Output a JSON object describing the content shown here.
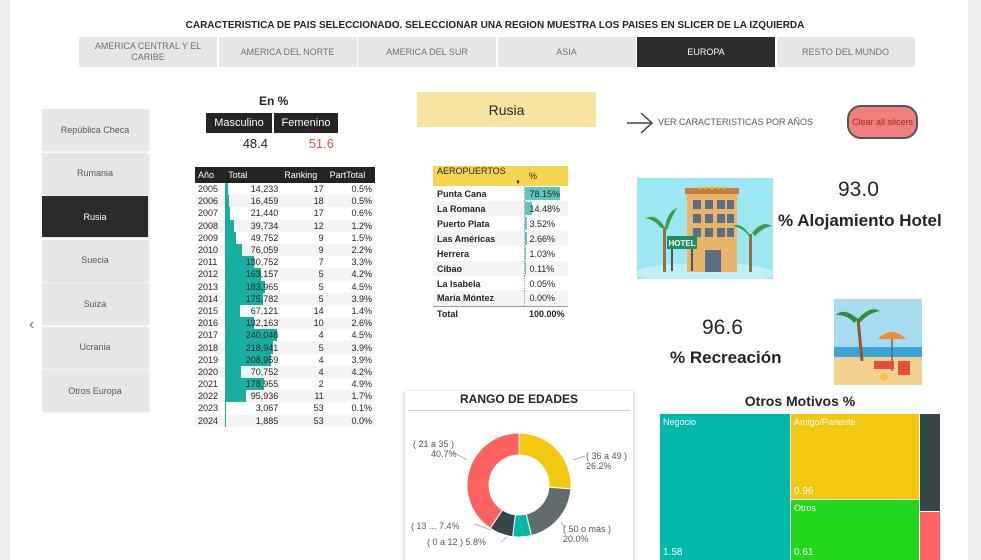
{
  "title": "CARACTERISTICA DE PAIS SELECCIONADO. SELECCIONAR UNA REGION MUESTRA LOS PAISES EN SLICER DE LA IZQUIERDA",
  "regions": [
    "AMERICA CENTRAL Y EL CARIBE",
    "AMERICA DEL NORTE",
    "AMERICA DEL SUR",
    "ASIA",
    "EUROPA",
    "RESTO DEL MUNDO"
  ],
  "active_region": "EUROPA",
  "countries": [
    "República Checa",
    "Rumania",
    "Rusia",
    "Suecia",
    "Suiza",
    "Ucrania",
    "Otros Europa"
  ],
  "active_country": "Rusia",
  "prev_arrow": "‹",
  "gender": {
    "title": "En %",
    "headers": [
      "Masculino",
      "Femenino"
    ],
    "values": [
      "48.4",
      "51.6"
    ],
    "colors": [
      "#252423",
      "#d9534f"
    ]
  },
  "year_table": {
    "headers": [
      "Año",
      "Total",
      "Ranking",
      "PartTotal"
    ],
    "rows": [
      {
        "year": "2005",
        "total": "14,233",
        "ranking": "17",
        "part": "0.5%"
      },
      {
        "year": "2006",
        "total": "16,459",
        "ranking": "18",
        "part": "0.5%"
      },
      {
        "year": "2007",
        "total": "21,440",
        "ranking": "17",
        "part": "0.6%"
      },
      {
        "year": "2008",
        "total": "39,734",
        "ranking": "12",
        "part": "1.2%"
      },
      {
        "year": "2009",
        "total": "49,752",
        "ranking": "9",
        "part": "1.5%"
      },
      {
        "year": "2010",
        "total": "76,059",
        "ranking": "9",
        "part": "2.2%"
      },
      {
        "year": "2011",
        "total": "130,752",
        "ranking": "7",
        "part": "3.3%"
      },
      {
        "year": "2012",
        "total": "163,157",
        "ranking": "5",
        "part": "4.2%"
      },
      {
        "year": "2013",
        "total": "183,965",
        "ranking": "5",
        "part": "4.5%"
      },
      {
        "year": "2014",
        "total": "175,782",
        "ranking": "5",
        "part": "3.9%"
      },
      {
        "year": "2015",
        "total": "67,121",
        "ranking": "14",
        "part": "1.4%"
      },
      {
        "year": "2016",
        "total": "132,163",
        "ranking": "10",
        "part": "2.6%"
      },
      {
        "year": "2017",
        "total": "240,048",
        "ranking": "4",
        "part": "4.5%"
      },
      {
        "year": "2018",
        "total": "218,941",
        "ranking": "5",
        "part": "3.9%"
      },
      {
        "year": "2019",
        "total": "208,959",
        "ranking": "4",
        "part": "3.9%"
      },
      {
        "year": "2020",
        "total": "70,752",
        "ranking": "4",
        "part": "4.2%"
      },
      {
        "year": "2021",
        "total": "178,955",
        "ranking": "2",
        "part": "4.9%"
      },
      {
        "year": "2022",
        "total": "95,936",
        "ranking": "11",
        "part": "1.7%"
      },
      {
        "year": "2023",
        "total": "3,067",
        "ranking": "53",
        "part": "0.1%"
      },
      {
        "year": "2024",
        "total": "1,885",
        "ranking": "53",
        "part": "0.0%"
      }
    ]
  },
  "country_title": "Rusia",
  "ver_caracteristicas": "VER CARACTERISTICAS POR AÑOS",
  "clear_button": "Clear all slicers",
  "airports": {
    "headers": [
      "AEROPUERTOS",
      "%"
    ],
    "rows": [
      {
        "name": "Punta Cana",
        "pct": "78.15%",
        "value": 78.15
      },
      {
        "name": "La Romana",
        "pct": "14.48%",
        "value": 14.48
      },
      {
        "name": "Puerto Plata",
        "pct": "3.52%",
        "value": 3.52
      },
      {
        "name": "Las Américas",
        "pct": "2.66%",
        "value": 2.66
      },
      {
        "name": "Herrera",
        "pct": "1.03%",
        "value": 1.03
      },
      {
        "name": "Cibao",
        "pct": "0.11%",
        "value": 0.11
      },
      {
        "name": "La Isabela",
        "pct": "0.05%",
        "value": 0.05
      },
      {
        "name": "María Móntez",
        "pct": "0.00%",
        "value": 0.0
      }
    ],
    "total_label": "Total",
    "total_value": "100.00%"
  },
  "hotel_kpi": {
    "value": "93.0",
    "label": "% Alojamiento Hotel",
    "badge": "HOTEL"
  },
  "recreacion_kpi": {
    "value": "96.6",
    "label": "% Recreación"
  },
  "age_chart": {
    "title": "RANGO DE EDADES",
    "segments": [
      {
        "label": "( 21 a 35 )",
        "pct": "40.7%",
        "value": 40.7,
        "color": "#fd625e"
      },
      {
        "label": "( 36 a 49 )",
        "pct": "26.2%",
        "value": 26.2,
        "color": "#f2c80f"
      },
      {
        "label": "( 50 o más )",
        "pct": "20.0%",
        "value": 20.0,
        "color": "#5f6b6d"
      },
      {
        "label": "( 0 a 12 )",
        "pct": "5.8%",
        "value": 5.8,
        "color": "#01b8aa"
      },
      {
        "label": "( 13 ...",
        "pct": "7.4%",
        "value": 7.4,
        "color": "#374649"
      }
    ]
  },
  "otros_motivos": {
    "title": "Otros Motivos %",
    "cells": [
      {
        "label": "Negocio",
        "value": "1.58",
        "color": "#01b8aa"
      },
      {
        "label": "Amigo/Pariente",
        "value": "0.96",
        "color": "#f2c80f"
      },
      {
        "label": "Otros",
        "value": "0.61",
        "color": "#22d81f"
      },
      {
        "label": "",
        "value": "",
        "color": "#374649"
      },
      {
        "label": "",
        "value": "",
        "color": "#fd625e"
      }
    ]
  }
}
